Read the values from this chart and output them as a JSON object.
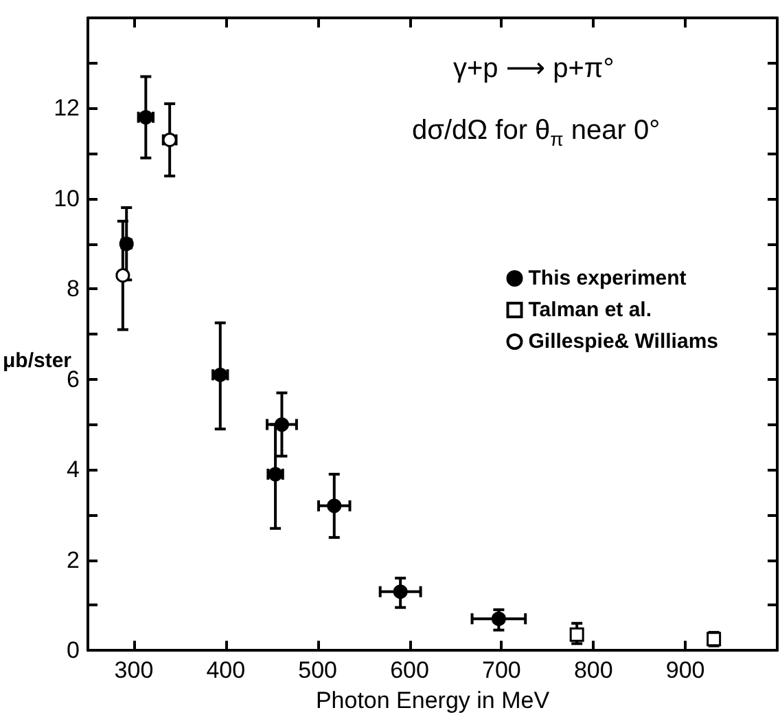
{
  "chart_data": {
    "type": "scatter",
    "xlabel": "Photon Energy in MeV",
    "ylabel": "μb/ster",
    "annotations": [
      "γ+p ⟶ p+π°",
      "dσ/dΩ for θ$_{π}$ near 0°"
    ],
    "xlim": [
      250,
      1000
    ],
    "xticks": [
      300,
      400,
      500,
      600,
      700,
      800,
      900
    ],
    "ylim": [
      0,
      14
    ],
    "yticks": [
      0,
      {
        "value": 1,
        "label": null
      },
      2,
      {
        "value": 3,
        "label": null
      },
      4,
      {
        "value": 5,
        "label": null
      },
      6,
      {
        "value": 7,
        "label": null
      },
      8,
      {
        "value": 9,
        "label": null
      },
      10,
      {
        "value": 11,
        "label": null
      },
      12,
      {
        "value": 13,
        "label": null
      }
    ],
    "grid": false,
    "legend": "right",
    "series": [
      {
        "name": "This experiment",
        "color": "#000000",
        "marker": "circle",
        "x": [
          292,
          313,
          394,
          454,
          461,
          518,
          590,
          697
        ],
        "values": [
          9.0,
          11.8,
          6.1,
          3.9,
          5.0,
          3.2,
          1.3,
          0.7
        ],
        "errors": [
          [
            8.2,
            9.8
          ],
          [
            10.9,
            12.7
          ],
          [
            4.9,
            7.25
          ],
          [
            2.7,
            5.0
          ],
          [
            4.3,
            5.7
          ],
          [
            2.5,
            3.9
          ],
          [
            0.95,
            1.6
          ],
          [
            0.45,
            0.9
          ]
        ],
        "xerrors": [
          5,
          8,
          8,
          8,
          16,
          17,
          22,
          29
        ]
      },
      {
        "name": "Talman et al.",
        "color": "#000000",
        "marker": "square",
        "x": [
          782,
          931
        ],
        "values": [
          0.35,
          0.25
        ],
        "errors": [
          [
            0.15,
            0.6
          ],
          [
            0.1,
            0.4
          ]
        ]
      },
      {
        "name": "Gillespie& Williams",
        "color": "#000000",
        "marker": "circle",
        "x": [
          288,
          339
        ],
        "values": [
          8.3,
          11.3
        ],
        "errors": [
          [
            7.1,
            9.5
          ],
          [
            10.5,
            12.1
          ]
        ],
        "xerrors": [
          null,
          7
        ]
      }
    ]
  }
}
